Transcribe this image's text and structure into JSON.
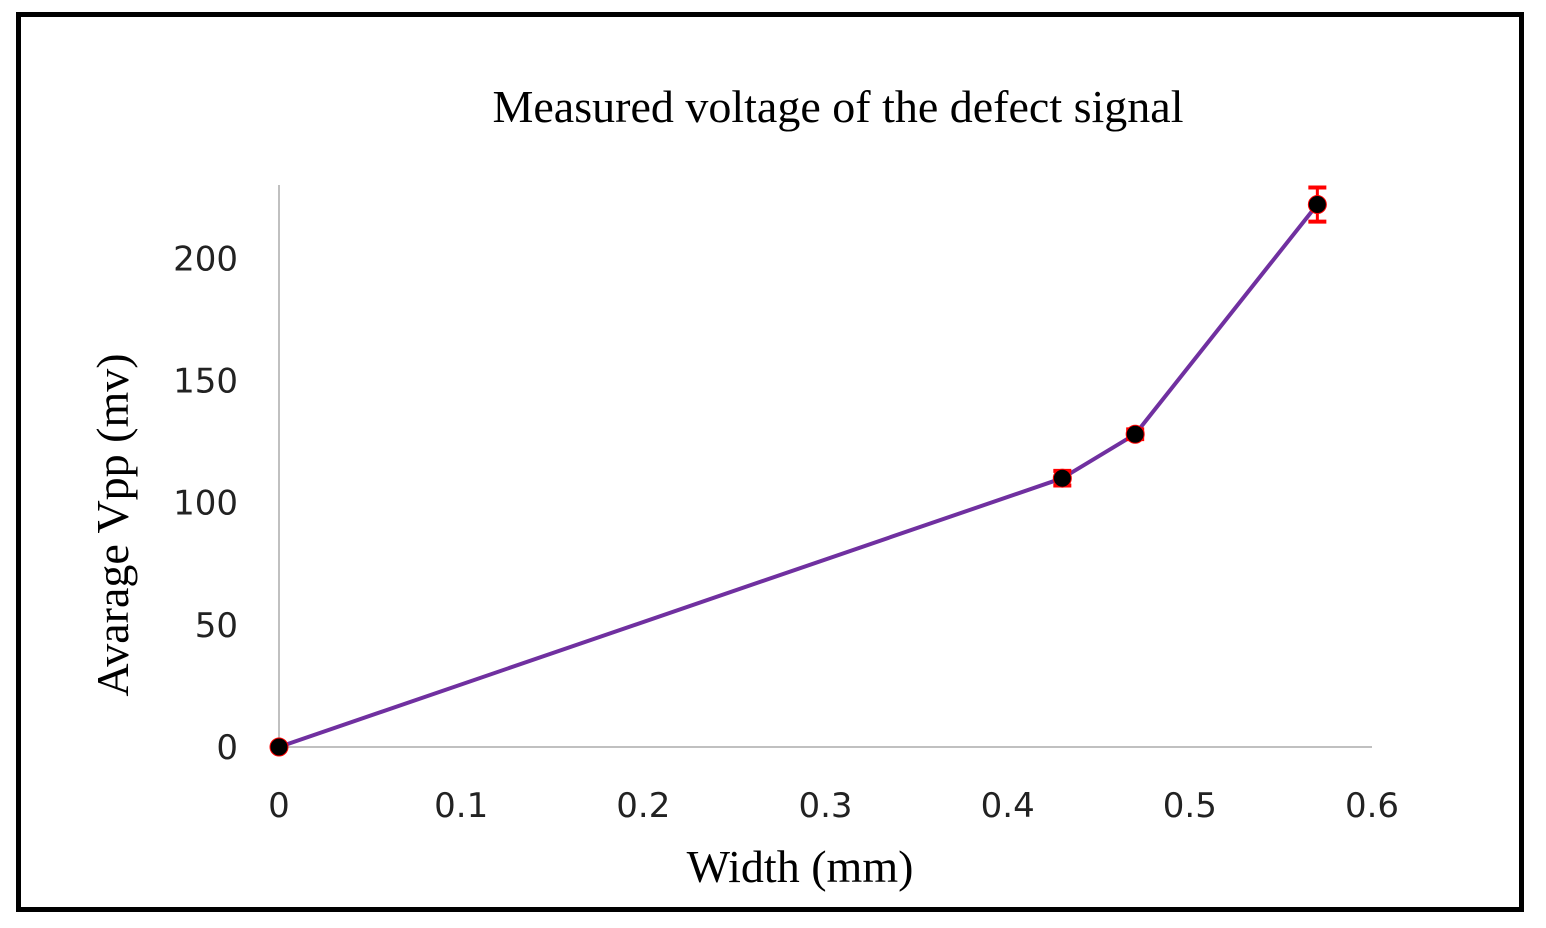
{
  "chart_data": {
    "type": "line",
    "title": "Measured voltage of the defect signal",
    "xlabel": "Width (mm)",
    "ylabel": "Avarage Vpp (mv)",
    "xlim": [
      0,
      0.6
    ],
    "ylim": [
      0,
      230
    ],
    "x_ticks": [
      0,
      0.1,
      0.2,
      0.3,
      0.4,
      0.5,
      0.6
    ],
    "x_tick_labels": [
      "0",
      "0.1",
      "0.2",
      "0.3",
      "0.4",
      "0.5",
      "0.6"
    ],
    "y_ticks": [
      0,
      50,
      100,
      150,
      200
    ],
    "y_tick_labels": [
      "0",
      "50",
      "100",
      "150",
      "200"
    ],
    "grid": false,
    "series": [
      {
        "name": "Average Vpp",
        "x": [
          0,
          0.43,
          0.47,
          0.57
        ],
        "y": [
          0,
          110,
          128,
          222
        ],
        "error": [
          0,
          3,
          2,
          7
        ],
        "line_color": "#7030a0",
        "marker_color": "#000000",
        "error_color": "#ff0000"
      }
    ]
  }
}
